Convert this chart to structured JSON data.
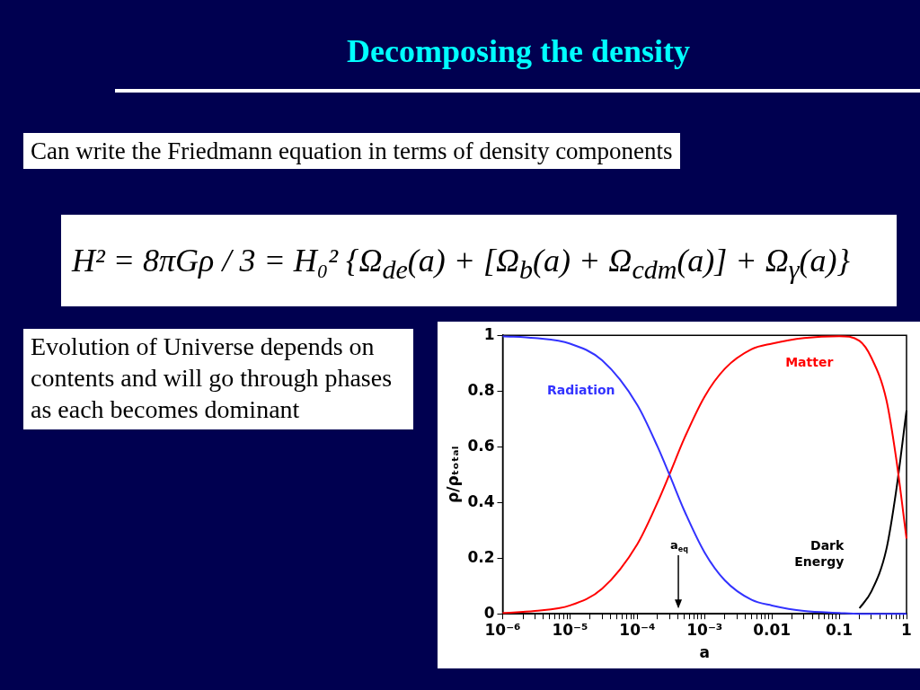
{
  "chart_data": {
    "type": "line",
    "title": "Decomposing the density",
    "annotations": [
      "Can write the Friedmann equation in terms of density components",
      "H² = 8πGρ / 3 = H₀² {Ω$_{de}$(a) + [Ω$_{b}$(a) + Ω$_{cdm}$(a)] + Ω$_{γ}$(a)}",
      "Evolution of Universe depends on contents and will go through phases as each becomes dominant",
      "a$_{eq}$"
    ],
    "xlabel": "a",
    "ylabel": "ρ/ρₜₒₜₐₗ",
    "log": "x",
    "x": [
      1e-06,
      3e-06,
      1e-05,
      3e-05,
      0.0001,
      0.0002,
      0.0003,
      0.0005,
      0.001,
      0.002,
      0.005,
      0.01,
      0.03,
      0.1,
      0.2,
      0.3,
      0.5,
      0.7,
      1
    ],
    "series": [
      {
        "name": "Radiation",
        "color": "#3333ff",
        "values": [
          0.997,
          0.99,
          0.97,
          0.91,
          0.75,
          0.6,
          0.5,
          0.37,
          0.22,
          0.12,
          0.05,
          0.03,
          0.01,
          0.003,
          0,
          0,
          0,
          0,
          0
        ]
      },
      {
        "name": "Matter",
        "color": "#ff0000",
        "values": [
          0.003,
          0.01,
          0.03,
          0.09,
          0.25,
          0.4,
          0.5,
          0.63,
          0.78,
          0.88,
          0.95,
          0.97,
          0.99,
          0.997,
          0.98,
          0.92,
          0.77,
          0.56,
          0.27
        ]
      },
      {
        "name": "Dark Energy",
        "color": "#000000",
        "x": [
          0.2,
          0.3,
          0.5,
          0.7,
          1
        ],
        "values": [
          0.02,
          0.08,
          0.23,
          0.44,
          0.73
        ]
      }
    ],
    "xlim": [
      1e-06,
      1
    ],
    "xticks": [
      {
        "value": 1e-06,
        "label": "10⁻⁶"
      },
      {
        "value": 2e-06,
        "label": null
      },
      {
        "value": 3e-06,
        "label": null
      },
      {
        "value": 4e-06,
        "label": null
      },
      {
        "value": 5e-06,
        "label": null
      },
      {
        "value": 6e-06,
        "label": null
      },
      {
        "value": 7e-06,
        "label": null
      },
      {
        "value": 8e-06,
        "label": null
      },
      {
        "value": 9e-06,
        "label": null
      },
      {
        "value": 1e-05,
        "label": "10⁻⁵"
      },
      {
        "value": 2e-05,
        "label": null
      },
      {
        "value": 3e-05,
        "label": null
      },
      {
        "value": 4e-05,
        "label": null
      },
      {
        "value": 5e-05,
        "label": null
      },
      {
        "value": 6e-05,
        "label": null
      },
      {
        "value": 7e-05,
        "label": null
      },
      {
        "value": 8e-05,
        "label": null
      },
      {
        "value": 9e-05,
        "label": null
      },
      {
        "value": 0.0001,
        "label": "10⁻⁴"
      },
      {
        "value": 0.0002,
        "label": null
      },
      {
        "value": 0.0003,
        "label": null
      },
      {
        "value": 0.0004,
        "label": null
      },
      {
        "value": 0.0005,
        "label": null
      },
      {
        "value": 0.0006,
        "label": null
      },
      {
        "value": 0.0007,
        "label": null
      },
      {
        "value": 0.0008,
        "label": null
      },
      {
        "value": 0.0009,
        "label": null
      },
      {
        "value": 0.001,
        "label": "10⁻³"
      },
      {
        "value": 0.002,
        "label": null
      },
      {
        "value": 0.003,
        "label": null
      },
      {
        "value": 0.004,
        "label": null
      },
      {
        "value": 0.005,
        "label": null
      },
      {
        "value": 0.006,
        "label": null
      },
      {
        "value": 0.007,
        "label": null
      },
      {
        "value": 0.008,
        "label": null
      },
      {
        "value": 0.009,
        "label": null
      },
      {
        "value": 0.01,
        "label": "0.01"
      },
      {
        "value": 0.02,
        "label": null
      },
      {
        "value": 0.03,
        "label": null
      },
      {
        "value": 0.04,
        "label": null
      },
      {
        "value": 0.05,
        "label": null
      },
      {
        "value": 0.06,
        "label": null
      },
      {
        "value": 0.07,
        "label": null
      },
      {
        "value": 0.08,
        "label": null
      },
      {
        "value": 0.09,
        "label": null
      },
      {
        "value": 0.1,
        "label": "0.1"
      },
      {
        "value": 0.2,
        "label": null
      },
      {
        "value": 0.3,
        "label": null
      },
      {
        "value": 0.4,
        "label": null
      },
      {
        "value": 0.5,
        "label": null
      },
      {
        "value": 0.6,
        "label": null
      },
      {
        "value": 0.7,
        "label": null
      },
      {
        "value": 0.8,
        "label": null
      },
      {
        "value": 0.9,
        "label": null
      },
      {
        "value": 1,
        "label": "1"
      }
    ],
    "ylim": [
      0,
      1
    ],
    "yticks": [
      0,
      0.2,
      0.4,
      0.6,
      0.8,
      1
    ],
    "grid": false,
    "legend": false,
    "marker": "none",
    "line_style": "solid"
  }
}
